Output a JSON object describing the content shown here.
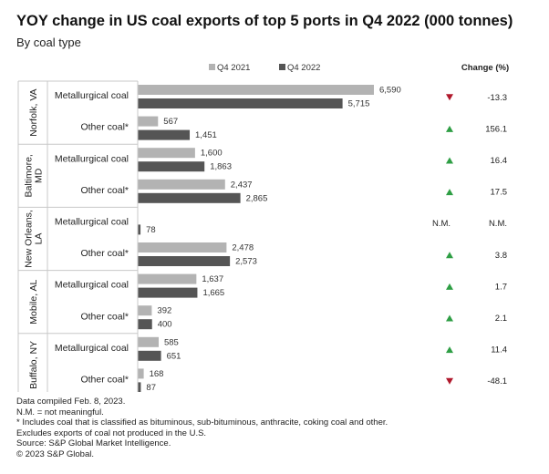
{
  "title": "YOY change in US coal exports of top 5 ports in Q4 2022 (000 tonnes)",
  "subtitle": "By coal type",
  "legend": {
    "q4_2021": "Q4 2021",
    "q4_2022": "Q4 2022",
    "change_header": "Change (%)"
  },
  "colors": {
    "q4_2021": "#b3b3b3",
    "q4_2022": "#555555",
    "up": "#2e9e44",
    "down": "#b0182c",
    "divider": "#c8c8c8"
  },
  "chart_data": {
    "type": "bar",
    "orientation": "horizontal",
    "title": "YOY change in US coal exports of top 5 ports in Q4 2022 (000 tonnes)",
    "subtitle": "By coal type",
    "unit": "000 tonnes",
    "series_names": [
      "Q4 2021",
      "Q4 2022"
    ],
    "xlim": [
      0,
      6590
    ],
    "groups": [
      {
        "port": "Norfolk, VA",
        "port_lines": [
          "Norfolk, VA"
        ],
        "rows": [
          {
            "category": "Metallurgical coal",
            "q4_2021": 6590,
            "q4_2022": 5715,
            "q4_2021_label": "6,590",
            "q4_2022_label": "5,715",
            "change": "-13.3",
            "direction": "down"
          },
          {
            "category": "Other coal*",
            "q4_2021": 567,
            "q4_2022": 1451,
            "q4_2021_label": "567",
            "q4_2022_label": "1,451",
            "change": "156.1",
            "direction": "up"
          }
        ]
      },
      {
        "port": "Baltimore, MD",
        "port_lines": [
          "Baltimore,",
          "MD"
        ],
        "rows": [
          {
            "category": "Metallurgical coal",
            "q4_2021": 1600,
            "q4_2022": 1863,
            "q4_2021_label": "1,600",
            "q4_2022_label": "1,863",
            "change": "16.4",
            "direction": "up"
          },
          {
            "category": "Other coal*",
            "q4_2021": 2437,
            "q4_2022": 2865,
            "q4_2021_label": "2,437",
            "q4_2022_label": "2,865",
            "change": "17.5",
            "direction": "up"
          }
        ]
      },
      {
        "port": "New Orleans, LA",
        "port_lines": [
          "New Orleans,",
          "LA"
        ],
        "rows": [
          {
            "category": "Metallurgical coal",
            "q4_2021": null,
            "q4_2022": 78,
            "q4_2021_label": null,
            "q4_2022_label": "78",
            "change": "N.M.",
            "direction": "nm",
            "nm_marker": "N.M."
          },
          {
            "category": "Other coal*",
            "q4_2021": 2478,
            "q4_2022": 2573,
            "q4_2021_label": "2,478",
            "q4_2022_label": "2,573",
            "change": "3.8",
            "direction": "up"
          }
        ]
      },
      {
        "port": "Mobile, AL",
        "port_lines": [
          "Mobile, AL"
        ],
        "rows": [
          {
            "category": "Metallurgical coal",
            "q4_2021": 1637,
            "q4_2022": 1665,
            "q4_2021_label": "1,637",
            "q4_2022_label": "1,665",
            "change": "1.7",
            "direction": "up"
          },
          {
            "category": "Other coal*",
            "q4_2021": 392,
            "q4_2022": 400,
            "q4_2021_label": "392",
            "q4_2022_label": "400",
            "change": "2.1",
            "direction": "up"
          }
        ]
      },
      {
        "port": "Buffalo, NY",
        "port_lines": [
          "Buffalo, NY"
        ],
        "rows": [
          {
            "category": "Metallurgical coal",
            "q4_2021": 585,
            "q4_2022": 651,
            "q4_2021_label": "585",
            "q4_2022_label": "651",
            "change": "11.4",
            "direction": "up"
          },
          {
            "category": "Other coal*",
            "q4_2021": 168,
            "q4_2022": 87,
            "q4_2021_label": "168",
            "q4_2022_label": "87",
            "change": "-48.1",
            "direction": "down"
          }
        ]
      }
    ]
  },
  "notes": [
    "Data compiled Feb. 8, 2023.",
    "N.M. = not meaningful.",
    "* Includes coal that is classified as bituminous, sub-bituminous, anthracite, coking coal and other.",
    "Excludes exports of coal not produced in the U.S.",
    "Source: S&P Global Market Intelligence.",
    "© 2023 S&P Global."
  ]
}
